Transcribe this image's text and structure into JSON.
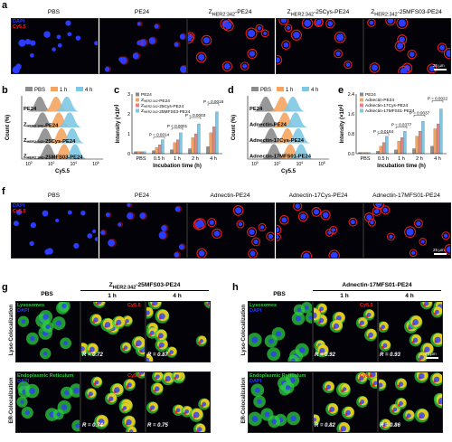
{
  "panels": {
    "a": "a",
    "b": "b",
    "c": "c",
    "d": "d",
    "e": "e",
    "f": "f",
    "g": "g",
    "h": "h"
  },
  "row_a": {
    "titles": [
      "PBS",
      "PE24",
      "Z<sub>HER2:342</sub>-PE24",
      "Z<sub>HER2:342</sub>-25Cys-PE24",
      "Z<sub>HER2:342</sub>-25MFS03-PE24"
    ],
    "tag_dapi": "DAPI",
    "tag_cy": "Cy5.5",
    "scale": "25 µm"
  },
  "row_f": {
    "titles": [
      "PBS",
      "PE24",
      "Adnectin-PE24",
      "Adnectin-17Cys-PE24",
      "Adnectin-17MFS01-PE24"
    ],
    "tag_dapi": "DAPI",
    "tag_cy": "Cy5.5",
    "scale": "25 µm"
  },
  "colors": {
    "pbs": "#8c8c8c",
    "h1": "#f4a460",
    "h4": "#7ec8e3",
    "dapi": "#2a3cff",
    "cy": "#ff2020",
    "lyso": "#2ecc40",
    "merge": "#ffd21f"
  },
  "chart_b": {
    "legend": [
      "PBS",
      "1 h",
      "4 h"
    ],
    "rows": [
      "PE24",
      "Z<sub>HER2:342</sub>-PE24",
      "Z<sub>HER2:342</sub>-25Cys-PE24",
      "Z<sub>HER2:342</sub>-25MFS03-PE24"
    ],
    "xlabel": "Cy5.5",
    "ylabel": "Count (%)",
    "xticks": [
      "10<sup>0</sup>",
      "10<sup>2</sup>",
      "10<sup>4</sup>",
      "10<sup>6</sup>"
    ]
  },
  "chart_d": {
    "legend": [
      "PBS",
      "1 h",
      "4 h"
    ],
    "rows": [
      "PE24",
      "Adnectin-PE24",
      "Adnectin-17Cys-PE24",
      "Adnectin-17MFS01-PE24"
    ],
    "xlabel": "Cy5.5",
    "ylabel": "Count (%)",
    "xticks": [
      "10<sup>0</sup>",
      "10<sup>2</sup>",
      "10<sup>4</sup>",
      "10<sup>6</sup>"
    ]
  },
  "chart_data": [
    {
      "type": "bar",
      "panel": "c",
      "categories": [
        "PBS",
        "0.5 h",
        "1 h",
        "2 h",
        "4 h"
      ],
      "series": [
        {
          "name": "PE24",
          "values": [
            0.1,
            0.15,
            0.2,
            0.25,
            0.35
          ]
        },
        {
          "name": "Z<sub>HER2:342</sub>-PE24",
          "values": [
            0.1,
            0.3,
            0.55,
            0.8,
            1.05
          ]
        },
        {
          "name": "Z<sub>HER2:342</sub>-25Cys-PE24",
          "values": [
            0.1,
            0.45,
            0.7,
            1.0,
            1.35
          ]
        },
        {
          "name": "Z<sub>HER2:342</sub>-25MFS03-PE24",
          "values": [
            0.1,
            0.7,
            1.05,
            1.5,
            2.1
          ]
        }
      ],
      "pvalues": [
        "P = 0.0014",
        "P < 0.0001",
        "P = 0.0003",
        "P = 0.0018"
      ],
      "xlabel": "Incubation time (h)",
      "ylabel": "Intensity (×10<sup>4</sup>)",
      "ylim": [
        0,
        3
      ],
      "yticks": [
        "0",
        "1",
        "2",
        "3"
      ]
    },
    {
      "type": "bar",
      "panel": "e",
      "categories": [
        "PBS",
        "0.5 h",
        "1 h",
        "2 h",
        "4 h"
      ],
      "series": [
        {
          "name": "PE24",
          "values": [
            0.05,
            0.1,
            0.15,
            0.2,
            0.3
          ]
        },
        {
          "name": "Adnectin-PE24",
          "values": [
            0.05,
            0.3,
            0.5,
            0.7,
            1.0
          ]
        },
        {
          "name": "Adnectin-17Cys-PE24",
          "values": [
            0.05,
            0.45,
            0.65,
            0.9,
            1.2
          ]
        },
        {
          "name": "Adnectin-17MFS01-PE24",
          "values": [
            0.05,
            0.7,
            0.9,
            1.3,
            1.8
          ]
        }
      ],
      "pvalues": [
        "P = 0.0184",
        "P = 0.0377",
        "P = 0.0037",
        "P = 0.0022"
      ],
      "xlabel": "Incubation time (h)",
      "ylabel": "Intensity (×10<sup>4</sup>)",
      "ylim": [
        0,
        2.4
      ],
      "yticks": [
        "0.0",
        "0.8",
        "1.6",
        "2.4"
      ]
    }
  ],
  "panel_g": {
    "col_titles": [
      "PBS",
      "1 h",
      "4 h"
    ],
    "group_title": "Z<sub>HER2:342</sub>-25MFS03-PE24",
    "row_labels": [
      "Lyso-Colocalization",
      "ER-Colocalization"
    ],
    "lyso_tag": "Lysosomes",
    "er_tag": "Endoplasmic Reticulum",
    "dapi_tag": "DAPI",
    "cy_tag": "Cy5.5",
    "r_values": [
      "R = 0.72",
      "R = 0.87",
      "R = 0.74",
      "R = 0.75"
    ]
  },
  "panel_h": {
    "col_titles": [
      "PBS",
      "1 h",
      "4 h"
    ],
    "group_title": "Adnectin-17MFS01-PE24",
    "row_labels": [
      "Lyso-Colocalization",
      "ER-Colocalization"
    ],
    "lyso_tag": "Lysosomes",
    "er_tag": "Endoplasmic Reticulum",
    "dapi_tag": "DAPI",
    "cy_tag": "Cy5.5",
    "r_values": [
      "R = 0.92",
      "R = 0.93",
      "R = 0.82",
      "R = 0.86"
    ],
    "scale": "25 µm"
  }
}
